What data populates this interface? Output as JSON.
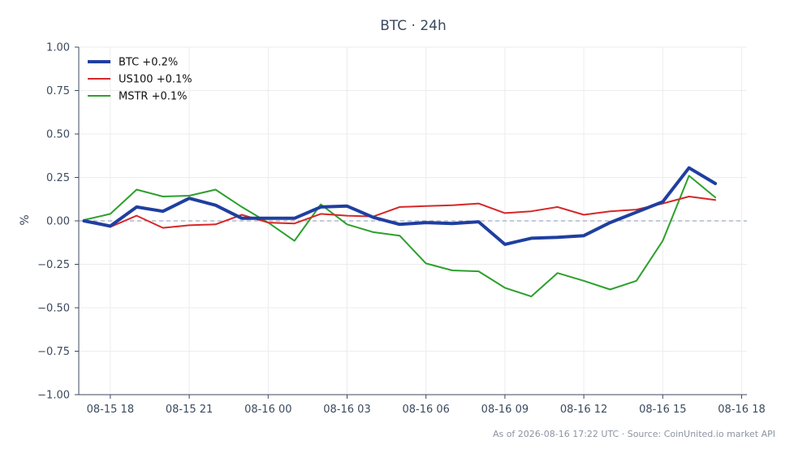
{
  "chart_data": {
    "type": "line",
    "title": "BTC · 24h",
    "xlabel": "",
    "ylabel": "%",
    "ylim": [
      -1.0,
      1.0
    ],
    "xlim": [
      "2026-08-15 16:48",
      "2026-08-16 18:12"
    ],
    "grid": true,
    "legend_position": "top-left",
    "baseline": 0,
    "yticks": [
      "1.00",
      "0.75",
      "0.50",
      "0.25",
      "0.00",
      "−0.25",
      "−0.50",
      "−0.75",
      "−1.00"
    ],
    "xticks": [
      "08-15 18",
      "08-15 21",
      "08-16 00",
      "08-16 03",
      "08-16 06",
      "08-16 09",
      "08-16 12",
      "08-16 15",
      "08-16 18"
    ],
    "x": [
      "2026-08-15 17:00",
      "2026-08-15 18:00",
      "2026-08-15 19:00",
      "2026-08-15 20:00",
      "2026-08-15 21:00",
      "2026-08-15 22:00",
      "2026-08-15 23:00",
      "2026-08-16 00:00",
      "2026-08-16 01:00",
      "2026-08-16 02:00",
      "2026-08-16 03:00",
      "2026-08-16 04:00",
      "2026-08-16 05:00",
      "2026-08-16 06:00",
      "2026-08-16 07:00",
      "2026-08-16 08:00",
      "2026-08-16 09:00",
      "2026-08-16 10:00",
      "2026-08-16 11:00",
      "2026-08-16 12:00",
      "2026-08-16 13:00",
      "2026-08-16 14:00",
      "2026-08-16 15:00",
      "2026-08-16 16:00",
      "2026-08-16 17:00"
    ],
    "series": [
      {
        "name": "BTC +0.2%",
        "color": "#1f3fa0",
        "values": [
          0.0,
          -0.03,
          0.08,
          0.055,
          0.13,
          0.09,
          0.015,
          0.015,
          0.015,
          0.08,
          0.085,
          0.02,
          -0.02,
          -0.01,
          -0.015,
          -0.005,
          -0.135,
          -0.1,
          -0.095,
          -0.085,
          -0.01,
          0.05,
          0.11,
          0.305,
          0.215
        ]
      },
      {
        "name": "US100 +0.1%",
        "color": "#d62728",
        "values": [
          0.0,
          -0.035,
          0.03,
          -0.04,
          -0.025,
          -0.02,
          0.035,
          -0.01,
          -0.015,
          0.04,
          0.03,
          0.025,
          0.08,
          0.085,
          0.09,
          0.1,
          0.045,
          0.055,
          0.08,
          0.035,
          0.055,
          0.065,
          0.1,
          0.14,
          0.12
        ]
      },
      {
        "name": "MSTR +0.1%",
        "color": "#2ca02c",
        "values": [
          0.005,
          0.04,
          0.18,
          0.14,
          0.145,
          0.18,
          0.08,
          -0.01,
          -0.115,
          0.095,
          -0.02,
          -0.065,
          -0.085,
          -0.245,
          -0.285,
          -0.29,
          -0.385,
          -0.435,
          -0.3,
          -0.345,
          -0.395,
          -0.345,
          -0.115,
          0.26,
          0.135
        ]
      }
    ],
    "source": "As of 2026-08-16 17:22 UTC · Source: CoinUnited.io market API"
  }
}
